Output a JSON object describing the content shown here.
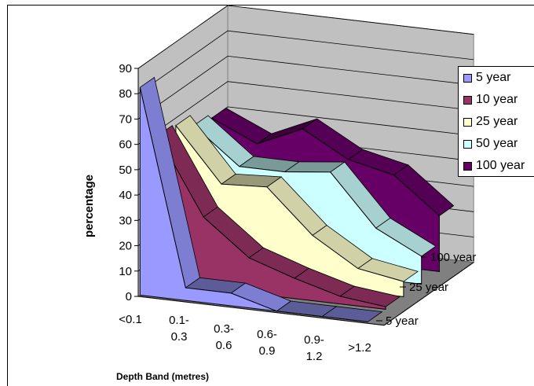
{
  "chart_data": {
    "type": "area",
    "subtype": "3d-area",
    "title": "",
    "ylabel": "percentage",
    "xlabel": "Depth Band (metres)",
    "ylim": [
      0,
      90
    ],
    "yticks": [
      "0",
      "10",
      "20",
      "30",
      "40",
      "50",
      "60",
      "70",
      "80",
      "90"
    ],
    "categories": [
      "<0.1",
      "0.1-0.3",
      "0.3-0.6",
      "0.6-0.9",
      "0.9-1.2",
      ">1.2"
    ],
    "category_lines": [
      [
        "<0.1"
      ],
      [
        "0.1-",
        "0.3"
      ],
      [
        "0.3-",
        "0.6"
      ],
      [
        "0.6-",
        "0.9"
      ],
      [
        "0.9-",
        "1.2"
      ],
      [
        ">1.2"
      ]
    ],
    "depth_labels": [
      "5 year",
      "25 year",
      "100 year"
    ],
    "grid": true,
    "legend_position": "right",
    "series": [
      {
        "name": "5 year",
        "color": "#9999ff",
        "values": [
          82,
          5,
          5,
          0,
          0,
          0
        ]
      },
      {
        "name": "10 year",
        "color": "#993366",
        "values": [
          58,
          28,
          14,
          8,
          3,
          1
        ]
      },
      {
        "name": "25 year",
        "color": "#ffffcc",
        "values": [
          57,
          36,
          37,
          20,
          9,
          6
        ]
      },
      {
        "name": "50 year",
        "color": "#ccffff",
        "values": [
          52,
          38,
          38,
          40,
          20,
          11
        ]
      },
      {
        "name": "100 year",
        "color": "#660066",
        "values": [
          50,
          42,
          50,
          40,
          36,
          22
        ]
      }
    ]
  }
}
